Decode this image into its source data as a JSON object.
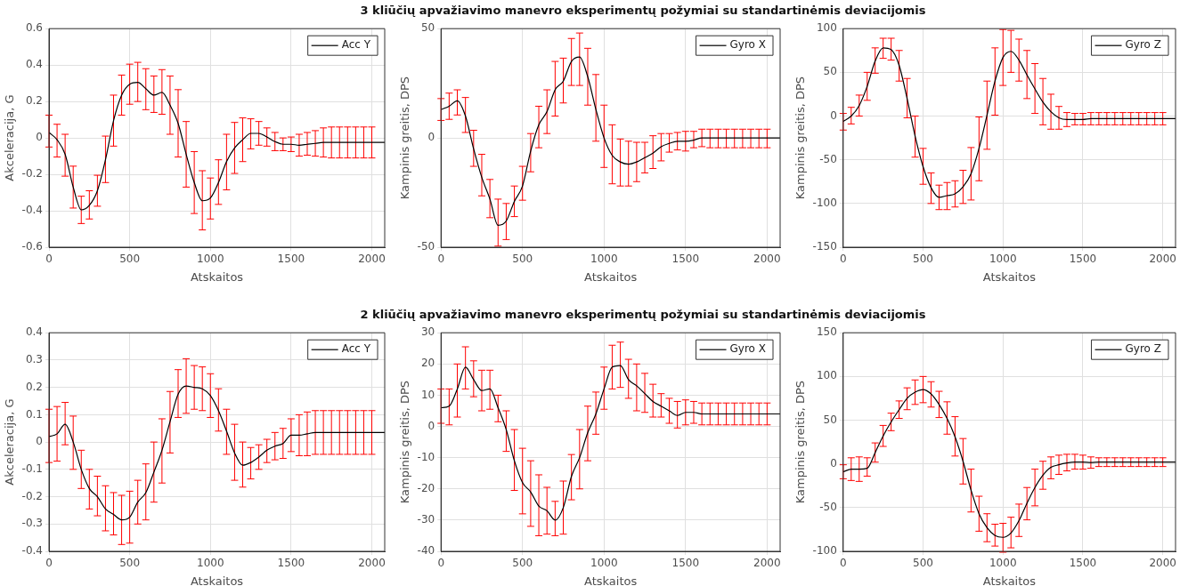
{
  "chart_data": [
    {
      "type": "line",
      "xlabel": "Atskaitos",
      "ylabel": "Akceleracija, G",
      "x": [
        0,
        50,
        100,
        150,
        200,
        250,
        300,
        350,
        400,
        450,
        500,
        550,
        600,
        650,
        700,
        750,
        800,
        850,
        900,
        950,
        1000,
        1050,
        1100,
        1150,
        1200,
        1250,
        1300,
        1350,
        1400,
        1450,
        1500,
        1550,
        1600,
        1650,
        1700,
        1750,
        1800,
        1850,
        1900,
        1950,
        2000,
        2080
      ],
      "xlim": [
        0,
        2080
      ],
      "xticks": [
        0,
        500,
        1000,
        1500,
        2000
      ],
      "ylim": [
        -0.6,
        0.6
      ],
      "yticks": [
        -0.6,
        -0.4,
        -0.2,
        0,
        0.2,
        0.4,
        0.6
      ],
      "grid": true,
      "legend": "top right",
      "series": [
        {
          "name": "Acc Y",
          "color": "#000000",
          "values": [
            0.03,
            -0.01,
            -0.09,
            -0.27,
            -0.395,
            -0.37,
            -0.29,
            -0.12,
            0.095,
            0.235,
            0.295,
            0.305,
            0.27,
            0.235,
            0.25,
            0.18,
            0.08,
            -0.09,
            -0.245,
            -0.345,
            -0.33,
            -0.245,
            -0.13,
            -0.055,
            -0.01,
            0.025,
            0.025,
            0.005,
            -0.02,
            -0.035,
            -0.035,
            -0.04,
            -0.035,
            -0.03,
            -0.025,
            -0.025,
            -0.025,
            -0.025,
            -0.025,
            -0.025,
            -0.025,
            -0.025
          ],
          "errors": [
            [
              -0.05,
              0.125
            ],
            [
              -0.105,
              0.075
            ],
            [
              -0.21,
              0.02
            ],
            [
              -0.385,
              -0.155
            ],
            [
              -0.47,
              -0.32
            ],
            [
              -0.445,
              -0.29
            ],
            [
              -0.375,
              -0.205
            ],
            [
              -0.245,
              0.01
            ],
            [
              -0.045,
              0.235
            ],
            [
              0.125,
              0.345
            ],
            [
              0.185,
              0.405
            ],
            [
              0.2,
              0.415
            ],
            [
              0.155,
              0.38
            ],
            [
              0.14,
              0.34
            ],
            [
              0.13,
              0.375
            ],
            [
              0.02,
              0.34
            ],
            [
              -0.105,
              0.265
            ],
            [
              -0.27,
              0.09
            ],
            [
              -0.415,
              -0.075
            ],
            [
              -0.505,
              -0.18
            ],
            [
              -0.445,
              -0.22
            ],
            [
              -0.365,
              -0.12
            ],
            [
              -0.285,
              0.02
            ],
            [
              -0.195,
              0.085
            ],
            [
              -0.13,
              0.11
            ],
            [
              -0.06,
              0.105
            ],
            [
              -0.04,
              0.09
            ],
            [
              -0.045,
              0.055
            ],
            [
              -0.07,
              0.03
            ],
            [
              -0.07,
              0.0
            ],
            [
              -0.075,
              0.005
            ],
            [
              -0.1,
              0.02
            ],
            [
              -0.095,
              0.03
            ],
            [
              -0.1,
              0.04
            ],
            [
              -0.105,
              0.055
            ],
            [
              -0.11,
              0.06
            ],
            [
              -0.11,
              0.06
            ],
            [
              -0.11,
              0.06
            ],
            [
              -0.11,
              0.06
            ],
            [
              -0.11,
              0.06
            ],
            [
              -0.11,
              0.06
            ],
            null
          ]
        }
      ]
    },
    {
      "type": "line",
      "title": "3 kliūčių apvažiavimo manevro eksperimentų požymiai su standartinėmis deviacijomis",
      "xlabel": "Atskaitos",
      "ylabel": "Kampinis greitis, DPS",
      "x": [
        0,
        50,
        100,
        150,
        200,
        250,
        300,
        350,
        400,
        450,
        500,
        550,
        600,
        650,
        700,
        750,
        800,
        850,
        900,
        950,
        1000,
        1050,
        1100,
        1150,
        1200,
        1250,
        1300,
        1350,
        1400,
        1450,
        1500,
        1550,
        1600,
        1650,
        1700,
        1750,
        1800,
        1850,
        1900,
        1950,
        2000,
        2080
      ],
      "xlim": [
        0,
        2080
      ],
      "xticks": [
        0,
        500,
        1000,
        1500,
        2000
      ],
      "ylim": [
        -50,
        50
      ],
      "yticks": [
        -50,
        0,
        50
      ],
      "grid": true,
      "legend": "top right",
      "series": [
        {
          "name": "Gyro X",
          "color": "#000000",
          "values": [
            13,
            14.5,
            17,
            10,
            -5,
            -18,
            -28,
            -40,
            -38,
            -29,
            -22,
            -6,
            6,
            12,
            22,
            26,
            35,
            37,
            28,
            13,
            0,
            -8,
            -11,
            -12,
            -11,
            -9,
            -7,
            -4,
            -2.5,
            -1.5,
            -1.5,
            -1,
            0,
            0,
            0,
            0,
            0,
            0,
            0,
            0,
            0,
            0
          ],
          "errors": [
            [
              8,
              18
            ],
            [
              8.5,
              20.5
            ],
            [
              10.5,
              22
            ],
            [
              2.5,
              18.5
            ],
            [
              -13,
              3.5
            ],
            [
              -26.5,
              -7.5
            ],
            [
              -36.5,
              -19
            ],
            [
              -49.5,
              -28
            ],
            [
              -46.5,
              -30
            ],
            [
              -36,
              -22
            ],
            [
              -28.5,
              -13
            ],
            [
              -15.5,
              2
            ],
            [
              -4.5,
              14.5
            ],
            [
              2,
              22
            ],
            [
              10,
              35
            ],
            [
              16,
              36.5
            ],
            [
              24,
              45.5
            ],
            [
              24,
              48
            ],
            [
              15,
              41
            ],
            [
              -1.5,
              29
            ],
            [
              -13.5,
              15
            ],
            [
              -21,
              6
            ],
            [
              -22,
              -0.5
            ],
            [
              -22,
              -1.5
            ],
            [
              -20,
              -2
            ],
            [
              -16,
              -2
            ],
            [
              -14,
              1
            ],
            [
              -10.5,
              2
            ],
            [
              -6.5,
              2
            ],
            [
              -5.5,
              2.5
            ],
            [
              -6,
              3
            ],
            [
              -4.5,
              3
            ],
            [
              -4,
              4
            ],
            [
              -4.5,
              4
            ],
            [
              -4.5,
              4
            ],
            [
              -4.5,
              4
            ],
            [
              -4.5,
              4
            ],
            [
              -4.5,
              4
            ],
            [
              -4.5,
              4
            ],
            [
              -4.5,
              4
            ],
            [
              -4.5,
              4
            ],
            null
          ]
        }
      ]
    },
    {
      "type": "line",
      "xlabel": "Atskaitos",
      "ylabel": "Kampinis greitis, DPS",
      "x": [
        0,
        50,
        100,
        150,
        200,
        250,
        300,
        350,
        400,
        450,
        500,
        550,
        600,
        650,
        700,
        750,
        800,
        850,
        900,
        950,
        1000,
        1050,
        1100,
        1150,
        1200,
        1250,
        1300,
        1350,
        1400,
        1450,
        1500,
        1550,
        1600,
        1650,
        1700,
        1750,
        1800,
        1850,
        1900,
        1950,
        2000,
        2080
      ],
      "xlim": [
        0,
        2080
      ],
      "xticks": [
        0,
        500,
        1000,
        1500,
        2000
      ],
      "ylim": [
        -150,
        100
      ],
      "yticks": [
        -150,
        -100,
        -50,
        0,
        50,
        100
      ],
      "grid": true,
      "legend": "top right",
      "series": [
        {
          "name": "Gyro Z",
          "color": "#000000",
          "values": [
            -6,
            0,
            12,
            34,
            63,
            78,
            76,
            58,
            20,
            -23,
            -58,
            -82,
            -93,
            -91,
            -89,
            -81,
            -66,
            -37,
            1,
            40,
            67,
            74,
            64,
            47,
            31,
            16,
            5,
            -2,
            -4,
            -4,
            -4,
            -3,
            -3,
            -3,
            -3,
            -3,
            -3,
            -3,
            -3,
            -3,
            -3,
            -3
          ],
          "errors": [
            [
              -16,
              3
            ],
            [
              -9,
              10
            ],
            [
              0,
              24
            ],
            [
              18,
              50
            ],
            [
              49,
              78
            ],
            [
              66,
              89
            ],
            [
              64,
              89
            ],
            [
              40,
              75
            ],
            [
              -2,
              43
            ],
            [
              -47,
              0
            ],
            [
              -78,
              -37
            ],
            [
              -100,
              -65
            ],
            [
              -107,
              -79
            ],
            [
              -107,
              -76
            ],
            [
              -104,
              -74
            ],
            [
              -100,
              -62
            ],
            [
              -96,
              -36
            ],
            [
              -74,
              -1
            ],
            [
              -38,
              40
            ],
            [
              1,
              78
            ],
            [
              35,
              99
            ],
            [
              50,
              98
            ],
            [
              40,
              88
            ],
            [
              20,
              75
            ],
            [
              3,
              60
            ],
            [
              -10,
              43
            ],
            [
              -15,
              25
            ],
            [
              -15,
              11
            ],
            [
              -12,
              4
            ],
            [
              -10,
              3
            ],
            [
              -10,
              3
            ],
            [
              -10,
              4
            ],
            [
              -10,
              4
            ],
            [
              -10,
              4
            ],
            [
              -10,
              4
            ],
            [
              -10,
              4
            ],
            [
              -10,
              4
            ],
            [
              -10,
              4
            ],
            [
              -10,
              4
            ],
            [
              -10,
              4
            ],
            [
              -10,
              4
            ],
            null
          ]
        }
      ]
    },
    {
      "type": "line",
      "xlabel": "Atskaitos",
      "ylabel": "Akceleracija, G",
      "x": [
        0,
        50,
        100,
        150,
        200,
        250,
        300,
        350,
        400,
        450,
        500,
        550,
        600,
        650,
        700,
        750,
        800,
        850,
        900,
        950,
        1000,
        1050,
        1100,
        1150,
        1200,
        1250,
        1300,
        1350,
        1400,
        1450,
        1500,
        1550,
        1600,
        1650,
        1700,
        1750,
        1800,
        1850,
        1900,
        1950,
        2000,
        2080
      ],
      "xlim": [
        0,
        2080
      ],
      "xticks": [
        0,
        500,
        1000,
        1500,
        2000
      ],
      "ylim": [
        -0.4,
        0.4
      ],
      "yticks": [
        -0.4,
        -0.3,
        -0.2,
        -0.1,
        0,
        0.1,
        0.2,
        0.3,
        0.4
      ],
      "grid": true,
      "legend": "top right",
      "series": [
        {
          "name": "Acc Y",
          "color": "#000000",
          "values": [
            0.02,
            0.03,
            0.065,
            0.0,
            -0.1,
            -0.17,
            -0.2,
            -0.245,
            -0.265,
            -0.285,
            -0.275,
            -0.22,
            -0.185,
            -0.11,
            -0.03,
            0.075,
            0.175,
            0.205,
            0.2,
            0.195,
            0.17,
            0.115,
            0.04,
            -0.04,
            -0.085,
            -0.075,
            -0.055,
            -0.03,
            -0.015,
            -0.005,
            0.025,
            0.025,
            0.03,
            0.035,
            0.035,
            0.035,
            0.035,
            0.035,
            0.035,
            0.035,
            0.035,
            0.035
          ],
          "errors": [
            [
              -0.075,
              0.12
            ],
            [
              -0.07,
              0.13
            ],
            [
              -0.01,
              0.145
            ],
            [
              -0.1,
              0.095
            ],
            [
              -0.17,
              -0.03
            ],
            [
              -0.245,
              -0.1
            ],
            [
              -0.27,
              -0.125
            ],
            [
              -0.325,
              -0.16
            ],
            [
              -0.34,
              -0.185
            ],
            [
              -0.375,
              -0.195
            ],
            [
              -0.37,
              -0.18
            ],
            [
              -0.3,
              -0.14
            ],
            [
              -0.285,
              -0.08
            ],
            [
              -0.22,
              0.0
            ],
            [
              -0.15,
              0.085
            ],
            [
              -0.04,
              0.185
            ],
            [
              0.09,
              0.265
            ],
            [
              0.105,
              0.305
            ],
            [
              0.12,
              0.28
            ],
            [
              0.115,
              0.275
            ],
            [
              0.09,
              0.25
            ],
            [
              0.04,
              0.195
            ],
            [
              -0.045,
              0.12
            ],
            [
              -0.14,
              0.065
            ],
            [
              -0.165,
              0.0
            ],
            [
              -0.135,
              -0.02
            ],
            [
              -0.1,
              -0.01
            ],
            [
              -0.075,
              0.01
            ],
            [
              -0.065,
              0.035
            ],
            [
              -0.06,
              0.05
            ],
            [
              -0.035,
              0.085
            ],
            [
              -0.05,
              0.1
            ],
            [
              -0.05,
              0.11
            ],
            [
              -0.045,
              0.115
            ],
            [
              -0.045,
              0.115
            ],
            [
              -0.045,
              0.115
            ],
            [
              -0.045,
              0.115
            ],
            [
              -0.045,
              0.115
            ],
            [
              -0.045,
              0.115
            ],
            [
              -0.045,
              0.115
            ],
            [
              -0.045,
              0.115
            ],
            null
          ]
        }
      ]
    },
    {
      "type": "line",
      "title": "2 kliūčių apvažiavimo manevro eksperimentų požymiai su standartinėmis deviacijomis",
      "xlabel": "Atskaitos",
      "ylabel": "Kampinis greitis, DPS",
      "x": [
        0,
        50,
        100,
        150,
        200,
        250,
        300,
        350,
        400,
        450,
        500,
        550,
        600,
        650,
        700,
        750,
        800,
        850,
        900,
        950,
        1000,
        1050,
        1100,
        1150,
        1200,
        1250,
        1300,
        1350,
        1400,
        1450,
        1500,
        1550,
        1600,
        1650,
        1700,
        1750,
        1800,
        1850,
        1900,
        1950,
        2000,
        2080
      ],
      "xlim": [
        0,
        2080
      ],
      "xticks": [
        0,
        500,
        1000,
        1500,
        2000
      ],
      "ylim": [
        -40,
        30
      ],
      "yticks": [
        -40,
        -30,
        -20,
        -10,
        0,
        10,
        20,
        30
      ],
      "grid": true,
      "legend": "top right",
      "series": [
        {
          "name": "Gyro X",
          "color": "#000000",
          "values": [
            6,
            6.5,
            12,
            19,
            15,
            11.5,
            12,
            6,
            -1,
            -11,
            -18,
            -21,
            -25.5,
            -27,
            -30,
            -26,
            -16,
            -10,
            -2,
            4,
            12,
            19,
            19.5,
            15,
            13,
            10.5,
            8,
            6.5,
            5,
            3.5,
            4.5,
            4.5,
            4,
            4,
            4,
            4,
            4,
            4,
            4,
            4,
            4,
            4
          ],
          "errors": [
            [
              1,
              12
            ],
            [
              0.5,
              12
            ],
            [
              3,
              20
            ],
            [
              12,
              25.5
            ],
            [
              9.5,
              21
            ],
            [
              5,
              18
            ],
            [
              5.5,
              18
            ],
            [
              1.5,
              10
            ],
            [
              -8,
              5
            ],
            [
              -20.5,
              -1
            ],
            [
              -28,
              -7
            ],
            [
              -32,
              -11
            ],
            [
              -35,
              -15.5
            ],
            [
              -34.5,
              -19.5
            ],
            [
              -35,
              -24
            ],
            [
              -34.5,
              -17.5
            ],
            [
              -23.5,
              -9
            ],
            [
              -20,
              -1
            ],
            [
              -11,
              6.5
            ],
            [
              -2.5,
              11
            ],
            [
              5.5,
              19
            ],
            [
              12,
              26
            ],
            [
              12.5,
              27
            ],
            [
              9,
              21.5
            ],
            [
              5,
              20
            ],
            [
              4.5,
              17
            ],
            [
              3,
              13.5
            ],
            [
              3,
              10.5
            ],
            [
              1,
              9
            ],
            [
              -0.5,
              8
            ],
            [
              0.5,
              8.5
            ],
            [
              1,
              8
            ],
            [
              0.5,
              7.5
            ],
            [
              0.5,
              7.5
            ],
            [
              0.5,
              7.5
            ],
            [
              0.5,
              7.5
            ],
            [
              0.5,
              7.5
            ],
            [
              0.5,
              7.5
            ],
            [
              0.5,
              7.5
            ],
            [
              0.5,
              7.5
            ],
            [
              0.5,
              7.5
            ],
            null
          ]
        }
      ]
    },
    {
      "type": "line",
      "xlabel": "Atskaitos",
      "ylabel": "Kampinis greitis, DPS",
      "x": [
        0,
        50,
        100,
        150,
        200,
        250,
        300,
        350,
        400,
        450,
        500,
        550,
        600,
        650,
        700,
        750,
        800,
        850,
        900,
        950,
        1000,
        1050,
        1100,
        1150,
        1200,
        1250,
        1300,
        1350,
        1400,
        1450,
        1500,
        1550,
        1600,
        1650,
        1700,
        1750,
        1800,
        1850,
        1900,
        1950,
        2000,
        2080
      ],
      "xlim": [
        0,
        2080
      ],
      "xticks": [
        0,
        500,
        1000,
        1500,
        2000
      ],
      "ylim": [
        -100,
        150
      ],
      "yticks": [
        -100,
        -50,
        0,
        50,
        100,
        150
      ],
      "grid": true,
      "legend": "top right",
      "series": [
        {
          "name": "Gyro Z",
          "color": "#000000",
          "values": [
            -9,
            -6,
            -6,
            -5,
            13,
            32,
            48,
            62,
            75,
            82,
            85,
            80,
            68,
            52,
            31,
            3,
            -30,
            -57,
            -73,
            -82,
            -84,
            -79,
            -65,
            -45,
            -27,
            -13,
            -4,
            -1,
            1,
            2,
            2,
            1.5,
            2,
            2,
            2,
            2,
            2,
            2,
            2,
            2,
            2,
            2
          ],
          "errors": [
            [
              -17,
              -1
            ],
            [
              -19,
              7
            ],
            [
              -20,
              8
            ],
            [
              -14,
              7
            ],
            [
              2,
              24
            ],
            [
              20,
              44
            ],
            [
              38,
              58
            ],
            [
              52,
              72
            ],
            [
              62,
              87
            ],
            [
              68,
              96
            ],
            [
              70,
              100
            ],
            [
              65,
              94
            ],
            [
              53,
              83
            ],
            [
              34,
              71
            ],
            [
              9,
              54
            ],
            [
              -23,
              29
            ],
            [
              -55,
              -6
            ],
            [
              -77,
              -37
            ],
            [
              -89,
              -57
            ],
            [
              -94,
              -69
            ],
            [
              -101,
              -68
            ],
            [
              -96,
              -61
            ],
            [
              -83,
              -46
            ],
            [
              -64,
              -27
            ],
            [
              -48,
              -6
            ],
            [
              -29,
              3
            ],
            [
              -17,
              8
            ],
            [
              -12,
              10
            ],
            [
              -8,
              11
            ],
            [
              -6,
              11
            ],
            [
              -6,
              10
            ],
            [
              -5,
              8
            ],
            [
              -3,
              7
            ],
            [
              -3,
              7
            ],
            [
              -3,
              7
            ],
            [
              -3,
              7
            ],
            [
              -3,
              7
            ],
            [
              -3,
              7
            ],
            [
              -3,
              7
            ],
            [
              -3,
              7
            ],
            [
              -3,
              7
            ],
            null
          ]
        }
      ]
    }
  ]
}
